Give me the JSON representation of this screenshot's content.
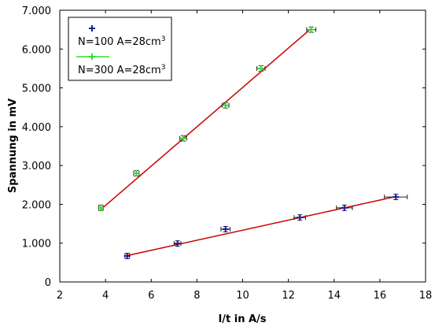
{
  "chart_data": {
    "type": "scatter",
    "xlabel": "I/t in A/s",
    "ylabel": "Spannung in mV",
    "xlim": [
      2,
      18
    ],
    "ylim": [
      0,
      7
    ],
    "xticks": [
      2,
      4,
      6,
      8,
      10,
      12,
      14,
      16,
      18
    ],
    "xtick_labels": [
      "2",
      "4",
      "6",
      "8",
      "10",
      "12",
      "14",
      "16",
      "18"
    ],
    "yticks": [
      0,
      1,
      2,
      3,
      4,
      5,
      6,
      7
    ],
    "ytick_labels": [
      "0",
      "1.000",
      "2.000",
      "3.000",
      "4.000",
      "5.000",
      "6.000",
      "7.000"
    ],
    "grid": false,
    "legend_position": "top-left",
    "series": [
      {
        "name": "N=100 A=28cm",
        "name_superscript": "3",
        "color": "#1a1aa6",
        "marker": "plus",
        "x": [
          4.95,
          7.15,
          9.25,
          12.5,
          14.45,
          16.7
        ],
        "y": [
          0.67,
          0.99,
          1.36,
          1.66,
          1.91,
          2.19
        ],
        "x_err": [
          0.1,
          0.15,
          0.2,
          0.25,
          0.35,
          0.5
        ],
        "y_err": [
          0.07,
          0.07,
          0.07,
          0.07,
          0.07,
          0.07
        ],
        "fit": {
          "color": "#cc0000",
          "x": [
            4.95,
            16.7
          ],
          "y": [
            0.68,
            2.2
          ]
        }
      },
      {
        "name": "N=300 A=28cm",
        "name_superscript": "3",
        "color": "#33dd33",
        "marker": "plus",
        "x": [
          3.8,
          5.35,
          7.4,
          9.25,
          10.8,
          13.0
        ],
        "y": [
          1.91,
          2.8,
          3.7,
          4.55,
          5.5,
          6.5
        ],
        "x_err": [
          0.1,
          0.12,
          0.15,
          0.15,
          0.18,
          0.2
        ],
        "y_err": [
          0.07,
          0.07,
          0.07,
          0.07,
          0.07,
          0.07
        ],
        "fit": {
          "color": "#cc0000",
          "x": [
            3.8,
            13.0
          ],
          "y": [
            1.87,
            6.53
          ]
        }
      }
    ]
  }
}
